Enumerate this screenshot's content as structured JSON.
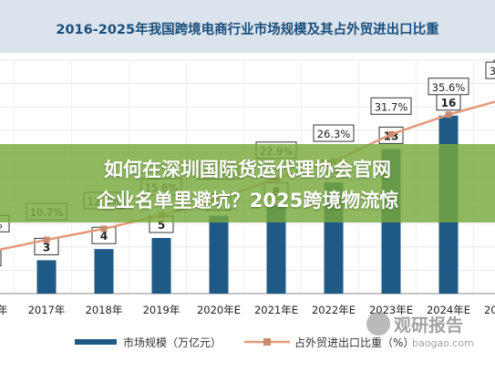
{
  "banner": {
    "line1": "如何在深圳国际货运代理协会官网",
    "line2": "企业名单里避坑？2025跨境物流惊"
  },
  "watermark": {
    "name": "观研报告",
    "url": "baogao.com"
  },
  "colors": {
    "bar": "#1f5a87",
    "line": "#e39a7a",
    "marker": "#c98a6e",
    "title_band": "#dbe3ec",
    "title_text": "#1a4f7d",
    "banner": "#78aa3c"
  },
  "chart_data": {
    "type": "bar",
    "title": "2016-2025年我国跨境电商行业市场规模及其占外贸进出口比重",
    "categories": [
      "2016年",
      "2017年",
      "2018年",
      "2019年",
      "2020年E",
      "2021年E",
      "2022年E",
      "2023年E",
      "2024年E",
      "2025年E"
    ],
    "series": [
      {
        "name": "市场规模（万亿元）",
        "kind": "bar",
        "values": [
          2,
          3,
          4,
          5,
          7,
          8,
          10,
          13,
          16,
          19
        ],
        "labels": [
          "2",
          "3",
          "4",
          "5",
          "7",
          "8",
          "10",
          "13",
          "16",
          "19"
        ]
      },
      {
        "name": "占外贸进出口比重（%）",
        "kind": "line",
        "values": [
          8.3,
          10.7,
          12.9,
          15.6,
          18.8,
          22.9,
          26.3,
          31.7,
          35.6,
          38.8
        ],
        "labels": [
          "8.3%",
          "10.7%",
          "12.9%",
          "15.6%",
          "18.8%",
          "22.9%",
          "26.3%",
          "31.7%",
          "35.6%",
          "38.8%"
        ]
      }
    ],
    "ylim": [
      0,
      20
    ],
    "ylim_right": [
      0,
      45
    ],
    "grid": true,
    "legend": "bottom"
  }
}
